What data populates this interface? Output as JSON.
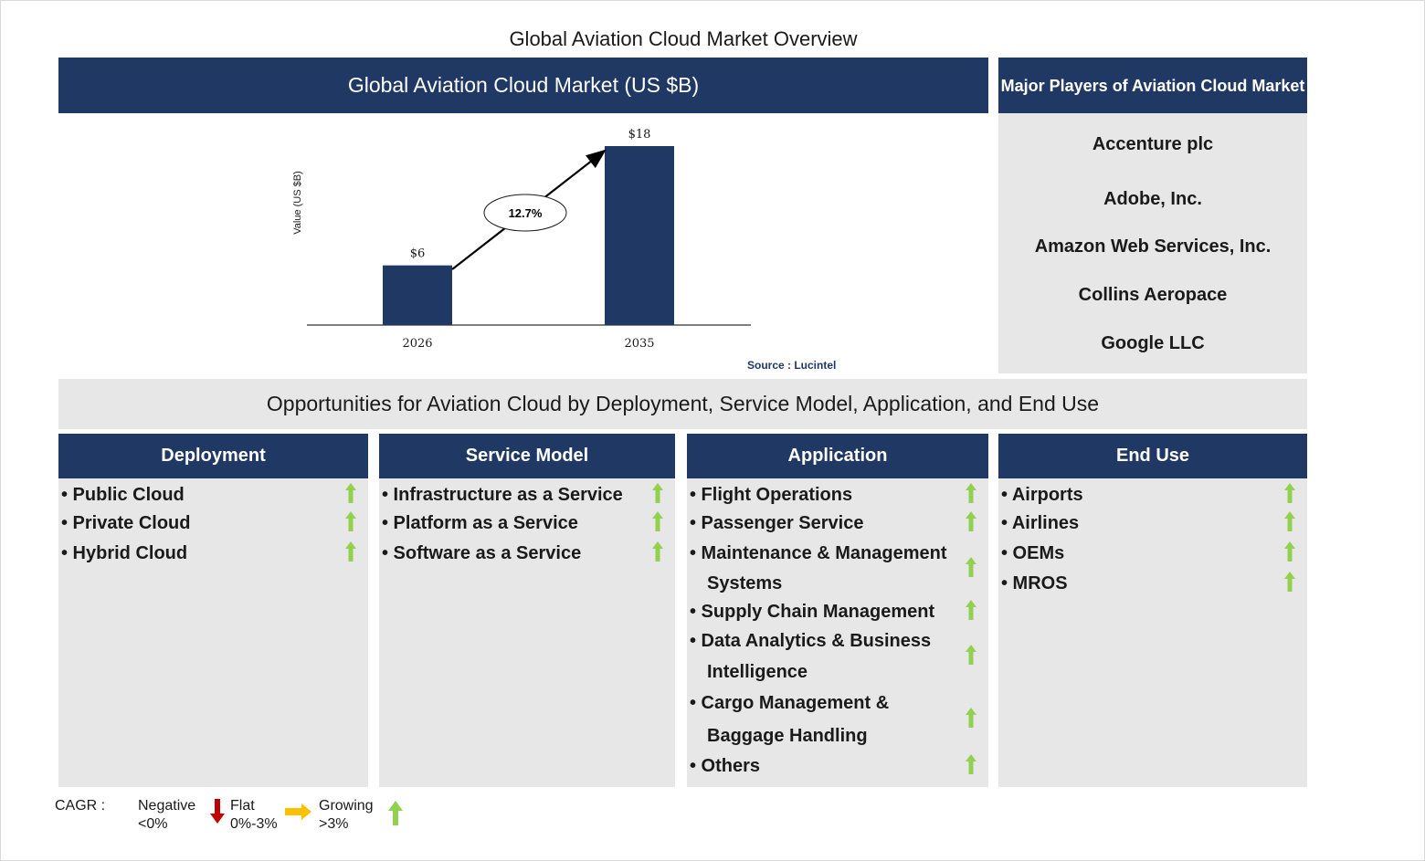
{
  "page_title": "Global Aviation Cloud Market Overview",
  "chart_panel": {
    "header": "Global Aviation Cloud Market (US $B)",
    "source": "Source : Lucintel"
  },
  "chart_data": {
    "type": "bar",
    "categories": [
      "2026",
      "2035"
    ],
    "values": [
      6,
      18
    ],
    "value_labels": [
      "$6",
      "$18"
    ],
    "ylabel": "Value (US $B)",
    "cagr_label": "12.7%",
    "ylim": [
      0,
      18
    ],
    "bar_color": "#1f3864"
  },
  "players": {
    "header": "Major Players of Aviation Cloud Market",
    "items": [
      "Accenture plc",
      "Adobe, Inc.",
      "Amazon Web Services, Inc.",
      "Collins Aeropace",
      "Google LLC"
    ]
  },
  "opportunities_title": "Opportunities for Aviation Cloud by Deployment, Service Model, Application, and End Use",
  "segments": [
    {
      "header": "Deployment",
      "items": [
        {
          "lines": [
            "Public Cloud"
          ],
          "trend": "growing"
        },
        {
          "lines": [
            "Private Cloud"
          ],
          "trend": "growing"
        },
        {
          "lines": [
            "Hybrid Cloud"
          ],
          "trend": "growing"
        }
      ]
    },
    {
      "header": "Service Model",
      "items": [
        {
          "lines": [
            "Infrastructure as a Service"
          ],
          "trend": "growing"
        },
        {
          "lines": [
            "Platform as a Service"
          ],
          "trend": "growing"
        },
        {
          "lines": [
            "Software as a Service"
          ],
          "trend": "growing"
        }
      ]
    },
    {
      "header": "Application",
      "items": [
        {
          "lines": [
            "Flight Operations"
          ],
          "trend": "growing"
        },
        {
          "lines": [
            "Passenger Service"
          ],
          "trend": "growing"
        },
        {
          "lines": [
            "Maintenance & Management",
            "Systems"
          ],
          "trend": "growing"
        },
        {
          "lines": [
            "Supply Chain Management"
          ],
          "trend": "growing"
        },
        {
          "lines": [
            "Data Analytics & Business",
            "Intelligence"
          ],
          "trend": "growing"
        },
        {
          "lines": [
            "Cargo Management &",
            "Baggage Handling"
          ],
          "trend": "growing"
        },
        {
          "lines": [
            "Others"
          ],
          "trend": "growing"
        }
      ]
    },
    {
      "header": "End Use",
      "items": [
        {
          "lines": [
            "Airports"
          ],
          "trend": "growing"
        },
        {
          "lines": [
            "Airlines"
          ],
          "trend": "growing"
        },
        {
          "lines": [
            "OEMs"
          ],
          "trend": "growing"
        },
        {
          "lines": [
            "MROS"
          ],
          "trend": "growing"
        }
      ]
    }
  ],
  "legend": {
    "label": "CAGR :",
    "negative": [
      "Negative",
      "<0%"
    ],
    "flat": [
      "Flat",
      "0%-3%"
    ],
    "growing": [
      "Growing",
      ">3%"
    ]
  },
  "colors": {
    "navy": "#1f3864",
    "panel_grey": "#e7e7e7",
    "up_green": "#92d050",
    "down_red": "#c00000",
    "flat_yellow": "#ffc000"
  }
}
